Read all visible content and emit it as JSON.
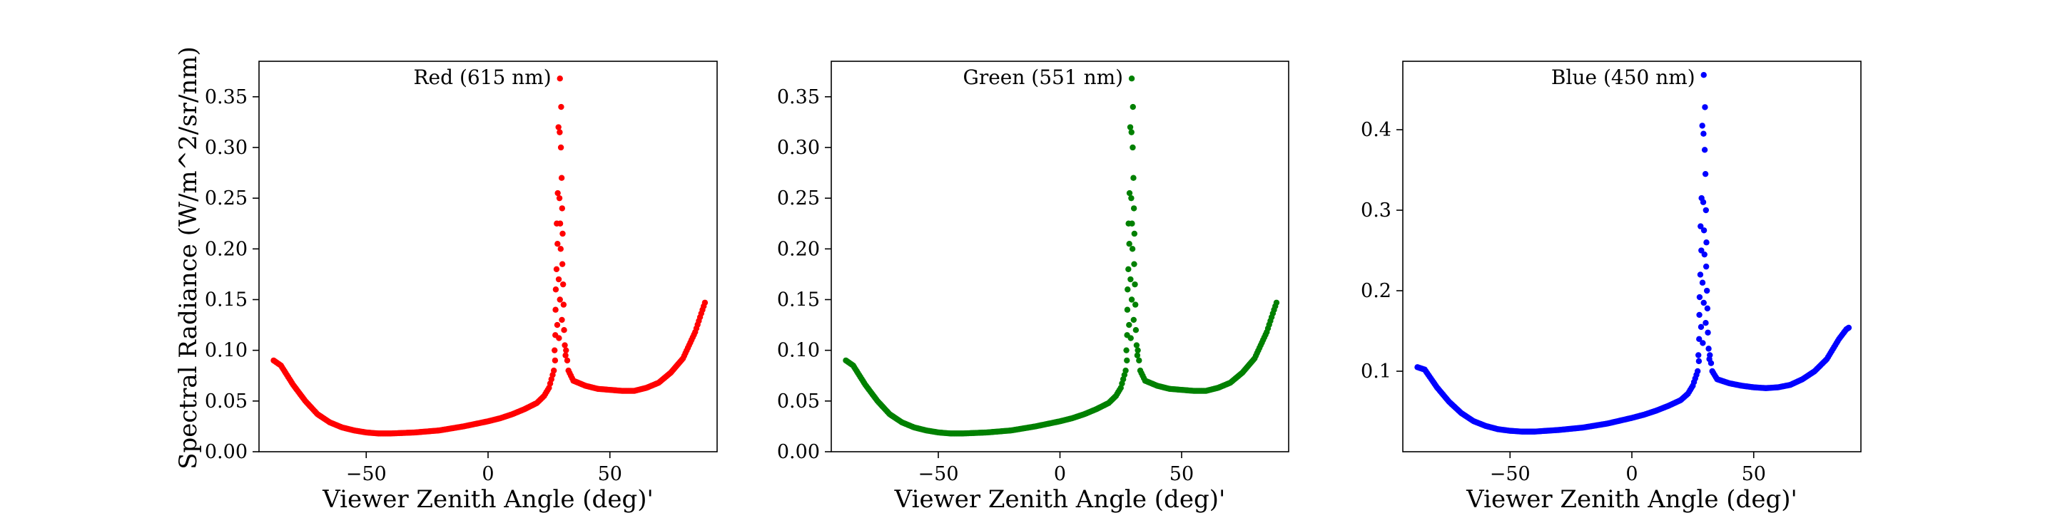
{
  "figure": {
    "ylabel": "Spectral Radiance (W/m^2/sr/nm)"
  },
  "chart_data": [
    {
      "type": "scatter",
      "title": "Red (615 nm)",
      "color": "#ff0000",
      "xlabel": "Viewer Zenith Angle (deg)'",
      "ylabel": "Spectral Radiance (W/m^2/sr/nm)",
      "xlim": [
        -94,
        94
      ],
      "ylim": [
        0.0,
        0.385
      ],
      "xticks": [
        -50,
        0,
        50
      ],
      "xtick_labels": [
        "−50",
        "0",
        "50"
      ],
      "yticks": [
        0.0,
        0.05,
        0.1,
        0.15,
        0.2,
        0.25,
        0.3,
        0.35
      ],
      "ytick_labels": [
        "0.00",
        "0.05",
        "0.10",
        "0.15",
        "0.20",
        "0.25",
        "0.30",
        "0.35"
      ],
      "grid": false,
      "curve": {
        "base_knots": [
          [
            -88,
            0.09
          ],
          [
            -85,
            0.085
          ],
          [
            -80,
            0.066
          ],
          [
            -75,
            0.05
          ],
          [
            -70,
            0.037
          ],
          [
            -65,
            0.029
          ],
          [
            -60,
            0.024
          ],
          [
            -55,
            0.021
          ],
          [
            -50,
            0.019
          ],
          [
            -45,
            0.018
          ],
          [
            -40,
            0.018
          ],
          [
            -30,
            0.019
          ],
          [
            -20,
            0.021
          ],
          [
            -10,
            0.025
          ],
          [
            0,
            0.03
          ],
          [
            5,
            0.033
          ],
          [
            10,
            0.037
          ],
          [
            15,
            0.042
          ],
          [
            20,
            0.048
          ],
          [
            23,
            0.055
          ],
          [
            25,
            0.063
          ],
          [
            27,
            0.08
          ],
          [
            28,
            0.1
          ],
          [
            29,
            0.14
          ],
          [
            29.6,
            0.36
          ],
          [
            30.2,
            0.3
          ],
          [
            31,
            0.14
          ],
          [
            32,
            0.1
          ],
          [
            33,
            0.08
          ],
          [
            35,
            0.07
          ],
          [
            40,
            0.065
          ],
          [
            45,
            0.062
          ],
          [
            50,
            0.061
          ],
          [
            55,
            0.06
          ],
          [
            60,
            0.06
          ],
          [
            65,
            0.063
          ],
          [
            70,
            0.068
          ],
          [
            75,
            0.078
          ],
          [
            80,
            0.092
          ],
          [
            85,
            0.118
          ],
          [
            88,
            0.14
          ],
          [
            89,
            0.147
          ]
        ],
        "peak_points": [
          [
            29.5,
            0.368
          ],
          [
            30.0,
            0.34
          ],
          [
            28.9,
            0.32
          ],
          [
            29.4,
            0.315
          ],
          [
            29.9,
            0.3
          ],
          [
            30.2,
            0.27
          ],
          [
            28.6,
            0.255
          ],
          [
            29.3,
            0.25
          ],
          [
            30.4,
            0.24
          ],
          [
            28.2,
            0.225
          ],
          [
            29.6,
            0.225
          ],
          [
            30.6,
            0.215
          ],
          [
            28.5,
            0.205
          ],
          [
            29.8,
            0.2
          ],
          [
            30.5,
            0.185
          ],
          [
            28.1,
            0.18
          ],
          [
            29.0,
            0.17
          ],
          [
            30.8,
            0.165
          ],
          [
            27.8,
            0.16
          ],
          [
            29.5,
            0.15
          ],
          [
            31.0,
            0.145
          ],
          [
            27.7,
            0.14
          ],
          [
            30.3,
            0.13
          ],
          [
            28.4,
            0.125
          ],
          [
            31.2,
            0.12
          ],
          [
            27.6,
            0.115
          ],
          [
            29.1,
            0.112
          ],
          [
            31.5,
            0.105
          ],
          [
            27.3,
            0.1
          ],
          [
            31.8,
            0.095
          ]
        ]
      }
    },
    {
      "type": "scatter",
      "title": "Green (551 nm)",
      "color": "#008000",
      "xlabel": "Viewer Zenith Angle (deg)'",
      "ylabel": "",
      "xlim": [
        -94,
        94
      ],
      "ylim": [
        0.0,
        0.385
      ],
      "xticks": [
        -50,
        0,
        50
      ],
      "xtick_labels": [
        "−50",
        "0",
        "50"
      ],
      "yticks": [
        0.0,
        0.05,
        0.1,
        0.15,
        0.2,
        0.25,
        0.3,
        0.35
      ],
      "ytick_labels": [
        "0.00",
        "0.05",
        "0.10",
        "0.15",
        "0.20",
        "0.25",
        "0.30",
        "0.35"
      ],
      "grid": false,
      "curve": {
        "base_knots": [
          [
            -88,
            0.09
          ],
          [
            -85,
            0.085
          ],
          [
            -80,
            0.066
          ],
          [
            -75,
            0.05
          ],
          [
            -70,
            0.037
          ],
          [
            -65,
            0.029
          ],
          [
            -60,
            0.024
          ],
          [
            -55,
            0.021
          ],
          [
            -50,
            0.019
          ],
          [
            -45,
            0.018
          ],
          [
            -40,
            0.018
          ],
          [
            -30,
            0.019
          ],
          [
            -20,
            0.021
          ],
          [
            -10,
            0.025
          ],
          [
            0,
            0.03
          ],
          [
            5,
            0.033
          ],
          [
            10,
            0.037
          ],
          [
            15,
            0.042
          ],
          [
            20,
            0.048
          ],
          [
            23,
            0.055
          ],
          [
            25,
            0.063
          ],
          [
            27,
            0.08
          ],
          [
            28,
            0.1
          ],
          [
            29,
            0.14
          ],
          [
            29.6,
            0.36
          ],
          [
            30.2,
            0.3
          ],
          [
            31,
            0.14
          ],
          [
            32,
            0.1
          ],
          [
            33,
            0.08
          ],
          [
            35,
            0.07
          ],
          [
            40,
            0.065
          ],
          [
            45,
            0.062
          ],
          [
            50,
            0.061
          ],
          [
            55,
            0.06
          ],
          [
            60,
            0.06
          ],
          [
            65,
            0.063
          ],
          [
            70,
            0.068
          ],
          [
            75,
            0.078
          ],
          [
            80,
            0.092
          ],
          [
            85,
            0.118
          ],
          [
            88,
            0.14
          ],
          [
            89,
            0.147
          ]
        ],
        "peak_points": [
          [
            29.5,
            0.368
          ],
          [
            30.0,
            0.34
          ],
          [
            28.9,
            0.32
          ],
          [
            29.4,
            0.315
          ],
          [
            29.9,
            0.3
          ],
          [
            30.2,
            0.27
          ],
          [
            28.6,
            0.255
          ],
          [
            29.3,
            0.25
          ],
          [
            30.4,
            0.24
          ],
          [
            28.2,
            0.225
          ],
          [
            29.6,
            0.225
          ],
          [
            30.6,
            0.215
          ],
          [
            28.5,
            0.205
          ],
          [
            29.8,
            0.2
          ],
          [
            30.5,
            0.185
          ],
          [
            28.1,
            0.18
          ],
          [
            29.0,
            0.17
          ],
          [
            30.8,
            0.165
          ],
          [
            27.8,
            0.16
          ],
          [
            29.5,
            0.15
          ],
          [
            31.0,
            0.145
          ],
          [
            27.7,
            0.14
          ],
          [
            30.3,
            0.13
          ],
          [
            28.4,
            0.125
          ],
          [
            31.2,
            0.12
          ],
          [
            27.6,
            0.115
          ],
          [
            29.1,
            0.112
          ],
          [
            31.5,
            0.105
          ],
          [
            27.3,
            0.1
          ],
          [
            31.8,
            0.095
          ]
        ]
      }
    },
    {
      "type": "scatter",
      "title": "Blue (450 nm)",
      "color": "#0000ff",
      "xlabel": "Viewer Zenith Angle (deg)'",
      "ylabel": "",
      "xlim": [
        -94,
        94
      ],
      "ylim": [
        0.0,
        0.485
      ],
      "xticks": [
        -50,
        0,
        50
      ],
      "xtick_labels": [
        "−50",
        "0",
        "50"
      ],
      "yticks": [
        0.1,
        0.2,
        0.3,
        0.4
      ],
      "ytick_labels": [
        "0.1",
        "0.2",
        "0.3",
        "0.4"
      ],
      "grid": false,
      "curve": {
        "base_knots": [
          [
            -88,
            0.105
          ],
          [
            -85,
            0.102
          ],
          [
            -80,
            0.08
          ],
          [
            -75,
            0.062
          ],
          [
            -70,
            0.048
          ],
          [
            -65,
            0.038
          ],
          [
            -60,
            0.032
          ],
          [
            -55,
            0.028
          ],
          [
            -50,
            0.026
          ],
          [
            -45,
            0.025
          ],
          [
            -40,
            0.025
          ],
          [
            -30,
            0.027
          ],
          [
            -20,
            0.03
          ],
          [
            -10,
            0.035
          ],
          [
            0,
            0.042
          ],
          [
            5,
            0.046
          ],
          [
            10,
            0.051
          ],
          [
            15,
            0.057
          ],
          [
            20,
            0.064
          ],
          [
            23,
            0.072
          ],
          [
            25,
            0.082
          ],
          [
            27,
            0.1
          ],
          [
            28,
            0.125
          ],
          [
            29,
            0.18
          ],
          [
            29.6,
            0.44
          ],
          [
            30.2,
            0.38
          ],
          [
            31,
            0.17
          ],
          [
            32,
            0.12
          ],
          [
            33,
            0.1
          ],
          [
            35,
            0.09
          ],
          [
            40,
            0.085
          ],
          [
            45,
            0.082
          ],
          [
            50,
            0.08
          ],
          [
            55,
            0.079
          ],
          [
            60,
            0.08
          ],
          [
            65,
            0.083
          ],
          [
            70,
            0.09
          ],
          [
            75,
            0.1
          ],
          [
            80,
            0.115
          ],
          [
            85,
            0.14
          ],
          [
            88,
            0.152
          ],
          [
            89,
            0.154
          ]
        ],
        "peak_points": [
          [
            29.5,
            0.468
          ],
          [
            30.0,
            0.428
          ],
          [
            28.9,
            0.405
          ],
          [
            29.4,
            0.395
          ],
          [
            29.9,
            0.375
          ],
          [
            30.2,
            0.345
          ],
          [
            28.6,
            0.315
          ],
          [
            29.3,
            0.31
          ],
          [
            30.4,
            0.3
          ],
          [
            28.2,
            0.28
          ],
          [
            29.6,
            0.275
          ],
          [
            30.6,
            0.26
          ],
          [
            28.5,
            0.25
          ],
          [
            29.8,
            0.245
          ],
          [
            30.5,
            0.23
          ],
          [
            28.1,
            0.22
          ],
          [
            29.0,
            0.21
          ],
          [
            30.8,
            0.2
          ],
          [
            27.8,
            0.192
          ],
          [
            29.5,
            0.185
          ],
          [
            31.0,
            0.178
          ],
          [
            27.7,
            0.17
          ],
          [
            30.3,
            0.16
          ],
          [
            28.4,
            0.155
          ],
          [
            31.2,
            0.148
          ],
          [
            27.6,
            0.14
          ],
          [
            29.1,
            0.135
          ],
          [
            31.5,
            0.128
          ],
          [
            27.3,
            0.12
          ],
          [
            31.8,
            0.115
          ]
        ]
      }
    }
  ]
}
